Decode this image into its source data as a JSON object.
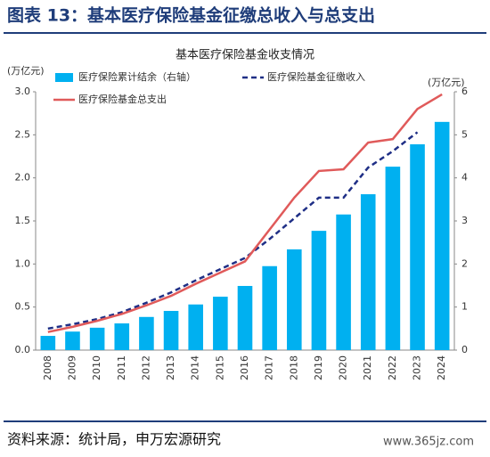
{
  "header": "图表 13：基本医疗保险基金征缴总收入与总支出",
  "chart_data": {
    "type": "bar_line",
    "title": "基本医疗保险基金收支情况",
    "y_label": "(万亿元)",
    "y2_label": "(万亿元)",
    "categories": [
      "2008",
      "2009",
      "2010",
      "2011",
      "2012",
      "2013",
      "2014",
      "2015",
      "2016",
      "2017",
      "2018",
      "2019",
      "2020",
      "2021",
      "2022",
      "2023",
      "2024"
    ],
    "series": [
      {
        "name": "医疗保险累计结余（右轴）",
        "type": "bar",
        "axis": "y2",
        "color": "#00b0f0",
        "values": [
          0.33,
          0.43,
          0.52,
          0.62,
          0.77,
          0.91,
          1.06,
          1.24,
          1.49,
          1.95,
          2.34,
          2.77,
          3.15,
          3.62,
          4.26,
          4.78,
          5.3
        ]
      },
      {
        "name": "医疗保险基金征缴收入",
        "type": "line",
        "dash": true,
        "color": "#1f2f86",
        "values": [
          0.25,
          0.3,
          0.36,
          0.44,
          0.55,
          0.67,
          0.81,
          0.94,
          1.07,
          1.29,
          1.53,
          1.77,
          1.77,
          2.12,
          2.31,
          2.53,
          null
        ]
      },
      {
        "name": "医疗保险基金总支出",
        "type": "line",
        "dash": false,
        "color": "#e05a5a",
        "values": [
          0.21,
          0.27,
          0.34,
          0.42,
          0.52,
          0.63,
          0.77,
          0.9,
          1.03,
          1.4,
          1.77,
          2.08,
          2.1,
          2.41,
          2.45,
          2.8,
          2.97
        ]
      }
    ],
    "ylim": [
      0,
      3
    ],
    "yticks": [
      {
        "value": 0,
        "label": "0.0"
      },
      0.5,
      {
        "value": 1,
        "label": "1.0"
      },
      1.5,
      {
        "value": 2,
        "label": "2.0"
      },
      2.5,
      {
        "value": 3,
        "label": "3.0"
      }
    ],
    "y2lim": [
      0,
      6
    ],
    "y2ticks": [
      0,
      1,
      2,
      3,
      4,
      5,
      6
    ]
  },
  "footer": "资料来源：统计局，申万宏源研究",
  "watermark": "www.365jz.com"
}
